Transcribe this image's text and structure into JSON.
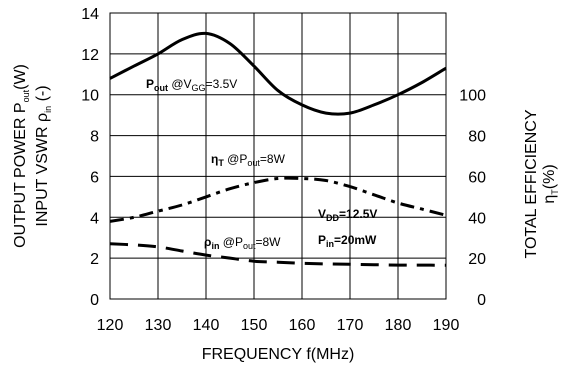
{
  "chart_data": {
    "type": "line",
    "xlabel": "FREQUENCY f(MHz)",
    "x_ticks": [
      120,
      130,
      140,
      150,
      160,
      170,
      180,
      190
    ],
    "xlim": [
      120,
      190
    ],
    "ylim_left": [
      0,
      14
    ],
    "y_left_ticks": [
      0,
      2,
      4,
      6,
      8,
      10,
      12,
      14
    ],
    "ylim_right": [
      0,
      140
    ],
    "y_right_ticks": [
      0,
      20,
      40,
      60,
      80,
      100
    ],
    "ylabel_left": {
      "line1": {
        "main": "OUTPUT POWER P",
        "sub": "out",
        "tail": "(W)"
      },
      "line2": {
        "main": "INPUT VSWR ",
        "greek": "ρ",
        "sub": "in",
        "tail": " (-)"
      }
    },
    "ylabel_right": {
      "line1": "TOTAL EFFICIENCY",
      "line2": {
        "greek": "η",
        "sub": "T",
        "tail": "(%)"
      }
    },
    "grid": true,
    "series": [
      {
        "name": "Pout @VGG=3.5V",
        "axis": "left",
        "style": "solid",
        "x": [
          120,
          125,
          130,
          135,
          140,
          145,
          150,
          155,
          160,
          165,
          170,
          175,
          180,
          185,
          190
        ],
        "y": [
          10.8,
          11.4,
          12.0,
          12.7,
          13.0,
          12.5,
          11.4,
          10.2,
          9.5,
          9.1,
          9.1,
          9.5,
          10.0,
          10.6,
          11.3
        ]
      },
      {
        "name": "ηT @Pout=8W",
        "axis": "right",
        "style": "dashdot",
        "x": [
          120,
          125,
          130,
          135,
          140,
          145,
          150,
          155,
          160,
          165,
          170,
          175,
          180,
          185,
          190
        ],
        "y": [
          38,
          40,
          43,
          46,
          50,
          54,
          57,
          59,
          59,
          58,
          55,
          51,
          47,
          44,
          41
        ]
      },
      {
        "name": "ρin @Pout=8W",
        "axis": "left",
        "style": "dashed",
        "x": [
          120,
          125,
          130,
          135,
          140,
          145,
          150,
          155,
          160,
          165,
          170,
          175,
          180,
          185,
          190
        ],
        "y": [
          2.7,
          2.65,
          2.55,
          2.35,
          2.15,
          2.0,
          1.85,
          1.8,
          1.75,
          1.72,
          1.7,
          1.68,
          1.66,
          1.66,
          1.65
        ]
      }
    ],
    "annotations": {
      "pout": {
        "main": "P",
        "sub": "out",
        "mid": " @V",
        "sub2": "GG",
        "tail": "=3.5V"
      },
      "eta": {
        "main": "η",
        "sub": "T",
        "mid": " @P",
        "sub2": "out",
        "tail": "=8W"
      },
      "rho": {
        "main": "ρ",
        "sub": "in",
        "mid": " @P",
        "sub2": "out",
        "tail": "=8W"
      },
      "vdd": {
        "main": "V",
        "sub": "DD",
        "tail": "=12.5V"
      },
      "pin": {
        "main": "P",
        "sub": "in",
        "tail": "=20mW"
      }
    }
  }
}
